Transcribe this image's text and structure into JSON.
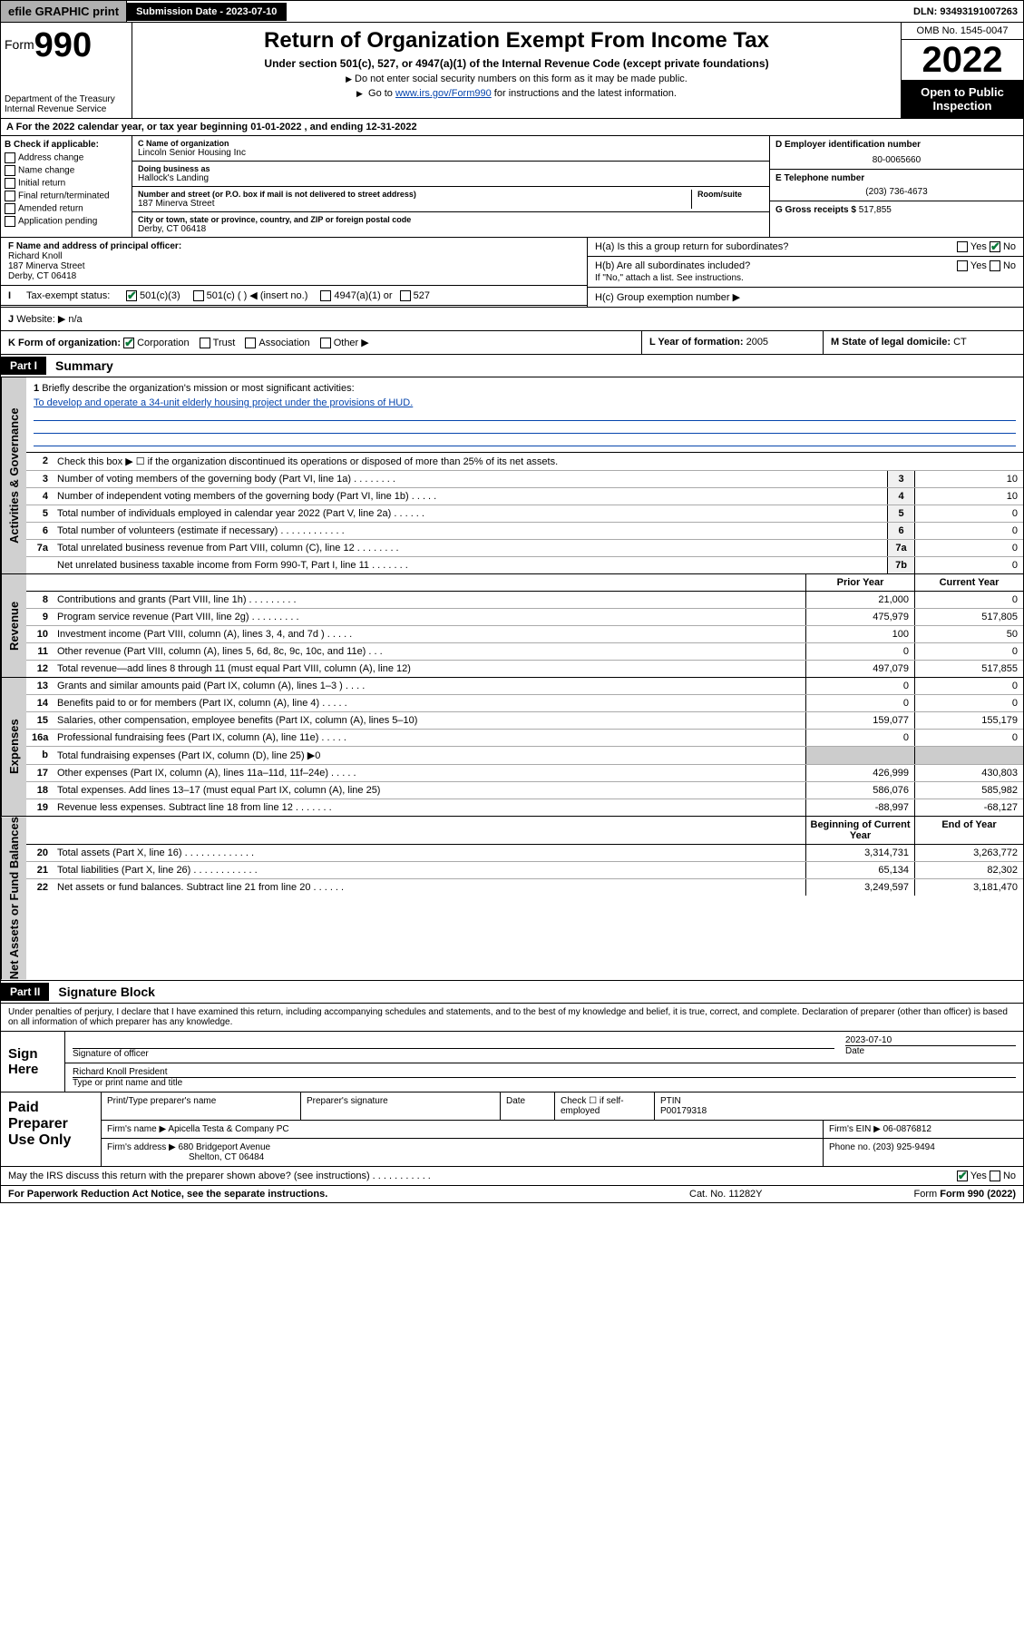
{
  "topbar": {
    "efile": "efile GRAPHIC print",
    "submission_label": "Submission Date - 2023-07-10",
    "dln": "DLN: 93493191007263"
  },
  "header": {
    "form_word": "Form",
    "form_number": "990",
    "dept": "Department of the Treasury",
    "irs": "Internal Revenue Service",
    "title": "Return of Organization Exempt From Income Tax",
    "subtitle": "Under section 501(c), 527, or 4947(a)(1) of the Internal Revenue Code (except private foundations)",
    "note1": "Do not enter social security numbers on this form as it may be made public.",
    "note2_pre": "Go to ",
    "note2_link": "www.irs.gov/Form990",
    "note2_post": " for instructions and the latest information.",
    "omb": "OMB No. 1545-0047",
    "year": "2022",
    "open_public": "Open to Public Inspection"
  },
  "tax_year": "For the 2022 calendar year, or tax year beginning 01-01-2022   , and ending 12-31-2022",
  "box_b": {
    "header": "B Check if applicable:",
    "opts": [
      "Address change",
      "Name change",
      "Initial return",
      "Final return/terminated",
      "Amended return",
      "Application pending"
    ]
  },
  "box_c": {
    "name_label": "C Name of organization",
    "name": "Lincoln Senior Housing Inc",
    "dba_label": "Doing business as",
    "dba": "Hallock's Landing",
    "street_label": "Number and street (or P.O. box if mail is not delivered to street address)",
    "room_label": "Room/suite",
    "street": "187 Minerva Street",
    "city_label": "City or town, state or province, country, and ZIP or foreign postal code",
    "city": "Derby, CT  06418"
  },
  "box_d": {
    "label": "D Employer identification number",
    "value": "80-0065660"
  },
  "box_e": {
    "label": "E Telephone number",
    "value": "(203) 736-4673"
  },
  "box_g": {
    "label": "G Gross receipts $",
    "value": "517,855"
  },
  "box_f": {
    "label": "F Name and address of principal officer:",
    "name": "Richard Knoll",
    "street": "187 Minerva Street",
    "city": "Derby, CT  06418"
  },
  "box_h": {
    "ha": "H(a)  Is this a group return for subordinates?",
    "hb": "H(b)  Are all subordinates included?",
    "hb_note": "If \"No,\" attach a list. See instructions.",
    "hc": "H(c)  Group exemption number ▶",
    "yes": "Yes",
    "no": "No"
  },
  "box_i": {
    "label": "Tax-exempt status:",
    "o1": "501(c)(3)",
    "o2": "501(c) (  ) ◀ (insert no.)",
    "o3": "4947(a)(1) or",
    "o4": "527"
  },
  "box_j": {
    "label": "Website: ▶",
    "value": "n/a"
  },
  "box_k": {
    "label": "K Form of organization:",
    "opts": [
      "Corporation",
      "Trust",
      "Association",
      "Other ▶"
    ]
  },
  "box_l": {
    "label": "L Year of formation:",
    "value": "2005"
  },
  "box_m": {
    "label": "M State of legal domicile:",
    "value": "CT"
  },
  "parts": {
    "p1": "Part I",
    "p1_title": "Summary",
    "p2": "Part II",
    "p2_title": "Signature Block"
  },
  "vtabs": {
    "gov": "Activities & Governance",
    "rev": "Revenue",
    "exp": "Expenses",
    "net": "Net Assets or Fund Balances"
  },
  "summary": {
    "l1": "Briefly describe the organization's mission or most significant activities:",
    "l1_text": "To develop and operate a 34-unit elderly housing project under the provisions of HUD.",
    "l2": "Check this box ▶ ☐  if the organization discontinued its operations or disposed of more than 25% of its net assets.",
    "lines": [
      {
        "n": "3",
        "d": "Number of voting members of the governing body (Part VI, line 1a)  .    .    .    .    .    .    .    .",
        "b": "3",
        "v": "10"
      },
      {
        "n": "4",
        "d": "Number of independent voting members of the governing body (Part VI, line 1b)  .    .    .    .    .",
        "b": "4",
        "v": "10"
      },
      {
        "n": "5",
        "d": "Total number of individuals employed in calendar year 2022 (Part V, line 2a)  .    .    .    .    .    .",
        "b": "5",
        "v": "0"
      },
      {
        "n": "6",
        "d": "Total number of volunteers (estimate if necessary)  .    .    .    .    .    .    .    .    .    .    .    .",
        "b": "6",
        "v": "0"
      },
      {
        "n": "7a",
        "d": "Total unrelated business revenue from Part VIII, column (C), line 12  .    .    .    .    .    .    .    .",
        "b": "7a",
        "v": "0"
      },
      {
        "n": "",
        "d": "Net unrelated business taxable income from Form 990-T, Part I, line 11  .    .    .    .    .    .    .",
        "b": "7b",
        "v": "0"
      }
    ],
    "col_prior": "Prior Year",
    "col_current": "Current Year",
    "revenue": [
      {
        "n": "8",
        "d": "Contributions and grants (Part VIII, line 1h)  .    .    .    .    .    .    .    .    .",
        "p": "21,000",
        "c": "0"
      },
      {
        "n": "9",
        "d": "Program service revenue (Part VIII, line 2g)  .    .    .    .    .    .    .    .    .",
        "p": "475,979",
        "c": "517,805"
      },
      {
        "n": "10",
        "d": "Investment income (Part VIII, column (A), lines 3, 4, and 7d )  .    .    .    .    .",
        "p": "100",
        "c": "50"
      },
      {
        "n": "11",
        "d": "Other revenue (Part VIII, column (A), lines 5, 6d, 8c, 9c, 10c, and 11e)  .    .    .",
        "p": "0",
        "c": "0"
      },
      {
        "n": "12",
        "d": "Total revenue—add lines 8 through 11 (must equal Part VIII, column (A), line 12)",
        "p": "497,079",
        "c": "517,855"
      }
    ],
    "expenses": [
      {
        "n": "13",
        "d": "Grants and similar amounts paid (Part IX, column (A), lines 1–3 )  .    .    .    .",
        "p": "0",
        "c": "0"
      },
      {
        "n": "14",
        "d": "Benefits paid to or for members (Part IX, column (A), line 4)  .    .    .    .    .",
        "p": "0",
        "c": "0"
      },
      {
        "n": "15",
        "d": "Salaries, other compensation, employee benefits (Part IX, column (A), lines 5–10)",
        "p": "159,077",
        "c": "155,179"
      },
      {
        "n": "16a",
        "d": "Professional fundraising fees (Part IX, column (A), line 11e)  .    .    .    .    .",
        "p": "0",
        "c": "0"
      },
      {
        "n": "b",
        "d": "Total fundraising expenses (Part IX, column (D), line 25) ▶0",
        "p": "",
        "c": ""
      },
      {
        "n": "17",
        "d": "Other expenses (Part IX, column (A), lines 11a–11d, 11f–24e)  .    .    .    .    .",
        "p": "426,999",
        "c": "430,803"
      },
      {
        "n": "18",
        "d": "Total expenses. Add lines 13–17 (must equal Part IX, column (A), line 25)",
        "p": "586,076",
        "c": "585,982"
      },
      {
        "n": "19",
        "d": "Revenue less expenses. Subtract line 18 from line 12  .    .    .    .    .    .    .",
        "p": "-88,997",
        "c": "-68,127"
      }
    ],
    "col_begin": "Beginning of Current Year",
    "col_end": "End of Year",
    "netassets": [
      {
        "n": "20",
        "d": "Total assets (Part X, line 16)  .    .    .    .    .    .    .    .    .    .    .    .    .",
        "p": "3,314,731",
        "c": "3,263,772"
      },
      {
        "n": "21",
        "d": "Total liabilities (Part X, line 26)  .    .    .    .    .    .    .    .    .    .    .    .",
        "p": "65,134",
        "c": "82,302"
      },
      {
        "n": "22",
        "d": "Net assets or fund balances. Subtract line 21 from line 20  .    .    .    .    .    .",
        "p": "3,249,597",
        "c": "3,181,470"
      }
    ]
  },
  "signature": {
    "declaration": "Under penalties of perjury, I declare that I have examined this return, including accompanying schedules and statements, and to the best of my knowledge and belief, it is true, correct, and complete. Declaration of preparer (other than officer) is based on all information of which preparer has any knowledge.",
    "sign_here": "Sign Here",
    "sig_officer": "Signature of officer",
    "date_label": "Date",
    "date": "2023-07-10",
    "officer_name": "Richard Knoll  President",
    "type_name": "Type or print name and title"
  },
  "preparer": {
    "label": "Paid Preparer Use Only",
    "h1": "Print/Type preparer's name",
    "h2": "Preparer's signature",
    "h3": "Date",
    "h4_check": "Check ☐ if self-employed",
    "h5": "PTIN",
    "ptin": "P00179318",
    "firm_name_label": "Firm's name    ▶",
    "firm_name": "Apicella Testa & Company PC",
    "firm_ein_label": "Firm's EIN ▶",
    "firm_ein": "06-0876812",
    "firm_addr_label": "Firm's address ▶",
    "firm_addr1": "680 Bridgeport Avenue",
    "firm_addr2": "Shelton, CT  06484",
    "phone_label": "Phone no.",
    "phone": "(203) 925-9494",
    "discuss": "May the IRS discuss this return with the preparer shown above? (see instructions)  .    .    .    .    .    .    .    .    .    .    .",
    "yes": "Yes",
    "no": "No"
  },
  "footer": {
    "paperwork": "For Paperwork Reduction Act Notice, see the separate instructions.",
    "cat": "Cat. No. 11282Y",
    "form": "Form 990 (2022)"
  }
}
